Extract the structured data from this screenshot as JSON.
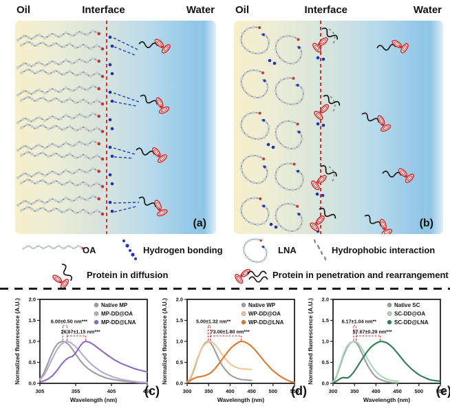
{
  "panels": {
    "a": {
      "oil": "Oil",
      "interface": "Interface",
      "water": "Water",
      "tag": "(a)"
    },
    "b": {
      "oil": "Oil",
      "interface": "Interface",
      "water": "Water",
      "tag": "(b)"
    }
  },
  "legend": {
    "oa_label": "OA",
    "hbond_label": "Hydrogen bonding",
    "diffusion_label": "Protein in diffusion",
    "lna_label": "LNA",
    "hydrophobic_label": "Hydrophobic interaction",
    "penetration_label": "Protein in penetration and rearrangement"
  },
  "colors": {
    "interface_line": "#d93025",
    "hydrogen_bond_blue": "#2433c4",
    "protein_red": "#cf2626",
    "chain_gray": "#9fa6a6",
    "oil_bg": "#f7efcb",
    "water_bg": "#8fc5e5"
  },
  "chart_data": [
    {
      "type": "line",
      "tag": "(c)",
      "xlabel": "Wavelength (nm)",
      "ylabel": "Normalized fluorescence (A.U.)",
      "xlim": [
        305,
        455
      ],
      "xticks": [
        305,
        355,
        405,
        455
      ],
      "ylim": [
        0,
        2.0
      ],
      "yticks": [
        0,
        0.5,
        1,
        1.5,
        2
      ],
      "grid": false,
      "legend_position": "top-right",
      "series": [
        {
          "name": "Native MP",
          "color": "#9c9c9c",
          "points": [
            [
              305,
              0.1
            ],
            [
              310,
              0.23
            ],
            [
              315,
              0.43
            ],
            [
              320,
              0.64
            ],
            [
              325,
              0.83
            ],
            [
              330,
              0.95
            ],
            [
              334,
              0.99
            ],
            [
              337,
              1
            ],
            [
              341,
              0.98
            ],
            [
              346,
              0.91
            ],
            [
              351,
              0.8
            ],
            [
              356,
              0.67
            ],
            [
              361,
              0.55
            ],
            [
              367,
              0.43
            ],
            [
              373,
              0.34
            ],
            [
              380,
              0.26
            ],
            [
              388,
              0.19
            ],
            [
              397,
              0.13
            ],
            [
              407,
              0.09
            ],
            [
              418,
              0.06
            ],
            [
              430,
              0.04
            ],
            [
              442,
              0.02
            ],
            [
              455,
              0.01
            ]
          ]
        },
        {
          "name": "MP-DD@OA",
          "color": "#b5a8d8",
          "points": [
            [
              305,
              0.08
            ],
            [
              311,
              0.2
            ],
            [
              317,
              0.4
            ],
            [
              323,
              0.61
            ],
            [
              329,
              0.81
            ],
            [
              335,
              0.94
            ],
            [
              340,
              0.99
            ],
            [
              343,
              1
            ],
            [
              348,
              0.97
            ],
            [
              354,
              0.89
            ],
            [
              360,
              0.78
            ],
            [
              366,
              0.65
            ],
            [
              373,
              0.52
            ],
            [
              380,
              0.41
            ],
            [
              388,
              0.31
            ],
            [
              396,
              0.23
            ],
            [
              406,
              0.16
            ],
            [
              417,
              0.1
            ],
            [
              430,
              0.06
            ],
            [
              443,
              0.03
            ],
            [
              455,
              0.02
            ]
          ]
        },
        {
          "name": "MP-DD@LNA",
          "color": "#8b68c8",
          "points": [
            [
              305,
              0.03
            ],
            [
              311,
              0.06
            ],
            [
              317,
              0.11
            ],
            [
              323,
              0.19
            ],
            [
              329,
              0.31
            ],
            [
              335,
              0.45
            ],
            [
              341,
              0.56
            ],
            [
              346,
              0.62
            ],
            [
              350,
              0.64
            ],
            [
              354,
              0.7
            ],
            [
              358,
              0.8
            ],
            [
              362,
              0.91
            ],
            [
              366,
              0.98
            ],
            [
              369,
              1
            ],
            [
              374,
              0.98
            ],
            [
              380,
              0.92
            ],
            [
              387,
              0.83
            ],
            [
              394,
              0.74
            ],
            [
              402,
              0.64
            ],
            [
              410,
              0.55
            ],
            [
              419,
              0.47
            ],
            [
              428,
              0.41
            ],
            [
              437,
              0.35
            ],
            [
              446,
              0.31
            ],
            [
              455,
              0.27
            ]
          ]
        }
      ],
      "annotations": [
        {
          "text": "6.00±0.50 nm***",
          "x1": 337,
          "x2": 343,
          "ybar": 1.38
        },
        {
          "text": "26.67±1.15 nm***",
          "x1": 343,
          "x2": 369,
          "ybar": 1.13
        }
      ]
    },
    {
      "type": "line",
      "tag": "(d)",
      "xlabel": "Wavelength (nm)",
      "ylabel": "Normalized fluorescence (A.U.)",
      "xlim": [
        300,
        550
      ],
      "xticks": [
        300,
        350,
        400,
        450,
        500,
        550
      ],
      "ylim": [
        0,
        2.0
      ],
      "yticks": [
        0,
        0.5,
        1,
        1.5,
        2
      ],
      "grid": false,
      "legend_position": "top-right",
      "series": [
        {
          "name": "Native WP",
          "color": "#9c9c9c",
          "points": [
            [
              300,
              0.02
            ],
            [
              308,
              0.12
            ],
            [
              316,
              0.32
            ],
            [
              324,
              0.58
            ],
            [
              332,
              0.8
            ],
            [
              340,
              0.94
            ],
            [
              346,
              0.99
            ],
            [
              349,
              1
            ],
            [
              354,
              0.97
            ],
            [
              360,
              0.88
            ],
            [
              367,
              0.73
            ],
            [
              374,
              0.57
            ],
            [
              382,
              0.42
            ],
            [
              390,
              0.31
            ],
            [
              398,
              0.22
            ],
            [
              407,
              0.16
            ],
            [
              416,
              0.12
            ],
            [
              426,
              0.09
            ],
            [
              436,
              0.08
            ],
            [
              450,
              0.07
            ]
          ]
        },
        {
          "name": "WP-DD@OA",
          "color": "#f2c78e",
          "points": [
            [
              300,
              0.03
            ],
            [
              308,
              0.14
            ],
            [
              316,
              0.36
            ],
            [
              324,
              0.6
            ],
            [
              332,
              0.8
            ],
            [
              340,
              0.92
            ],
            [
              348,
              0.98
            ],
            [
              354,
              1
            ],
            [
              360,
              0.97
            ],
            [
              367,
              0.9
            ],
            [
              374,
              0.8
            ],
            [
              382,
              0.68
            ],
            [
              390,
              0.57
            ],
            [
              398,
              0.48
            ],
            [
              406,
              0.42
            ],
            [
              414,
              0.38
            ],
            [
              424,
              0.35
            ],
            [
              436,
              0.34
            ],
            [
              450,
              0.33
            ]
          ]
        },
        {
          "name": "WP-DD@LNA",
          "color": "#e0762c",
          "points": [
            [
              300,
              0.02
            ],
            [
              308,
              0.07
            ],
            [
              316,
              0.12
            ],
            [
              324,
              0.15
            ],
            [
              332,
              0.16
            ],
            [
              340,
              0.18
            ],
            [
              348,
              0.21
            ],
            [
              356,
              0.26
            ],
            [
              364,
              0.34
            ],
            [
              372,
              0.44
            ],
            [
              380,
              0.55
            ],
            [
              388,
              0.66
            ],
            [
              396,
              0.77
            ],
            [
              404,
              0.86
            ],
            [
              412,
              0.93
            ],
            [
              420,
              0.98
            ],
            [
              426,
              1
            ],
            [
              433,
              0.99
            ],
            [
              441,
              0.95
            ],
            [
              449,
              0.89
            ],
            [
              457,
              0.81
            ],
            [
              465,
              0.71
            ],
            [
              473,
              0.61
            ],
            [
              481,
              0.51
            ],
            [
              489,
              0.42
            ],
            [
              497,
              0.33
            ],
            [
              505,
              0.26
            ],
            [
              514,
              0.19
            ],
            [
              523,
              0.13
            ],
            [
              532,
              0.08
            ],
            [
              541,
              0.04
            ],
            [
              550,
              0.02
            ]
          ]
        }
      ],
      "annotations": [
        {
          "text": "5.00±1.32 nm**",
          "x1": 349,
          "x2": 354,
          "ybar": 1.38
        },
        {
          "text": "73.00±1.80 nm***",
          "x1": 354,
          "x2": 426,
          "ybar": 1.13
        }
      ]
    },
    {
      "type": "line",
      "tag": "(e)",
      "xlabel": "Wavelength (nm)",
      "ylabel": "Normalized fluorescence (A.U.)",
      "xlim": [
        300,
        550
      ],
      "xticks": [
        300,
        350,
        400,
        450,
        500,
        550
      ],
      "ylim": [
        0,
        2.0
      ],
      "yticks": [
        0,
        0.5,
        1,
        1.5,
        2
      ],
      "grid": false,
      "legend_position": "top-right",
      "series": [
        {
          "name": "Native SC",
          "color": "#9c9c9c",
          "points": [
            [
              300,
              0.02
            ],
            [
              308,
              0.16
            ],
            [
              316,
              0.4
            ],
            [
              324,
              0.65
            ],
            [
              332,
              0.84
            ],
            [
              340,
              0.96
            ],
            [
              348,
              1
            ],
            [
              354,
              0.97
            ],
            [
              360,
              0.88
            ],
            [
              367,
              0.73
            ],
            [
              374,
              0.56
            ],
            [
              382,
              0.4
            ],
            [
              390,
              0.27
            ],
            [
              398,
              0.17
            ],
            [
              406,
              0.11
            ],
            [
              415,
              0.07
            ],
            [
              425,
              0.04
            ],
            [
              437,
              0.02
            ],
            [
              450,
              0.01
            ]
          ]
        },
        {
          "name": "SC-DD@OA",
          "color": "#a6d9b7",
          "points": [
            [
              300,
              0.03
            ],
            [
              308,
              0.18
            ],
            [
              316,
              0.44
            ],
            [
              324,
              0.7
            ],
            [
              332,
              0.88
            ],
            [
              340,
              0.97
            ],
            [
              348,
              1
            ],
            [
              352,
              1
            ],
            [
              358,
              0.96
            ],
            [
              365,
              0.87
            ],
            [
              372,
              0.74
            ],
            [
              380,
              0.59
            ],
            [
              388,
              0.45
            ],
            [
              396,
              0.33
            ],
            [
              404,
              0.24
            ],
            [
              412,
              0.17
            ],
            [
              421,
              0.12
            ],
            [
              431,
              0.08
            ],
            [
              441,
              0.06
            ],
            [
              452,
              0.05
            ]
          ]
        },
        {
          "name": "SC-DD@LNA",
          "color": "#2e7d52",
          "points": [
            [
              300,
              0.01
            ],
            [
              306,
              0.04
            ],
            [
              312,
              0.08
            ],
            [
              318,
              0.12
            ],
            [
              324,
              0.14
            ],
            [
              329,
              0.13
            ],
            [
              334,
              0.13
            ],
            [
              340,
              0.17
            ],
            [
              347,
              0.25
            ],
            [
              355,
              0.37
            ],
            [
              363,
              0.5
            ],
            [
              371,
              0.63
            ],
            [
              379,
              0.75
            ],
            [
              387,
              0.85
            ],
            [
              395,
              0.92
            ],
            [
              403,
              0.97
            ],
            [
              410,
              1
            ],
            [
              418,
              0.99
            ],
            [
              426,
              0.96
            ],
            [
              434,
              0.9
            ],
            [
              442,
              0.82
            ],
            [
              450,
              0.72
            ],
            [
              458,
              0.62
            ],
            [
              466,
              0.52
            ],
            [
              474,
              0.43
            ],
            [
              482,
              0.35
            ],
            [
              490,
              0.28
            ],
            [
              498,
              0.22
            ],
            [
              506,
              0.17
            ],
            [
              515,
              0.13
            ],
            [
              524,
              0.09
            ],
            [
              533,
              0.07
            ],
            [
              542,
              0.06
            ],
            [
              550,
              0.05
            ]
          ]
        }
      ],
      "annotations": [
        {
          "text": "6.17±1.04 nm**",
          "x1": 348,
          "x2": 354,
          "ybar": 1.38
        },
        {
          "text": "57.67±0.29 nm***",
          "x1": 354,
          "x2": 410,
          "ybar": 1.13
        }
      ]
    }
  ]
}
